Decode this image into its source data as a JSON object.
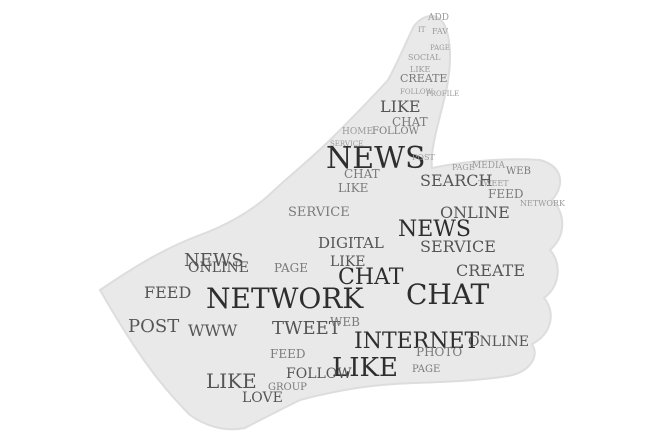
{
  "image": {
    "subject": "thumbs-up word cloud",
    "background": "#ffffff",
    "shape_fill": "#e9e9e9",
    "shape_edge": "#dddddd",
    "word_colors": [
      "#2e2e2e",
      "#555555",
      "#7a7a7a",
      "#9a9a9a"
    ]
  },
  "words": [
    "ADD",
    "IT",
    "FAV",
    "PAGE",
    "SOCIAL",
    "LIKE",
    "CREATE",
    "FOLLOW",
    "PROFILE",
    "LIKE",
    "CHAT",
    "HOME",
    "FOLLOW",
    "SERVICE",
    "NEWS",
    "POST",
    "PAGE",
    "MEDIA",
    "WEB",
    "SEARCH",
    "TWEET",
    "FEED",
    "ONLINE",
    "NETWORK",
    "NEWS",
    "LIKE",
    "CHAT",
    "SERVICE",
    "DIGITAL",
    "CREATE",
    "SERVICE",
    "LIKE",
    "CHAT",
    "PAGE",
    "ONLINE",
    "NEWS",
    "FEED",
    "NETWORK",
    "CHAT",
    "POST",
    "WWW",
    "TWEET",
    "WEB",
    "INTERNET",
    "PHOTO",
    "ONLINE",
    "LIKE",
    "FEED",
    "FOLLOW",
    "LIKE",
    "LOVE",
    "PAGE",
    "GROUP"
  ]
}
